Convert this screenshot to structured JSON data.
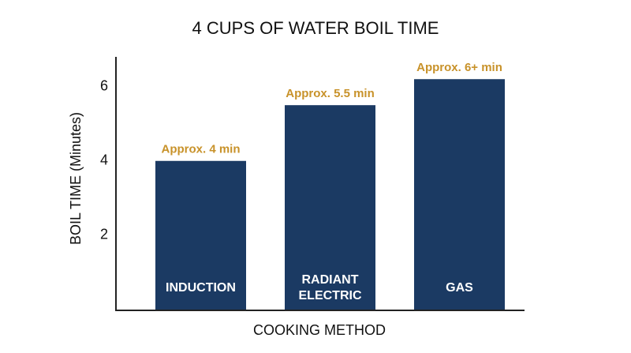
{
  "chart_data": {
    "type": "bar",
    "title": "4 CUPS OF WATER BOIL TIME",
    "x_label": "COOKING METHOD",
    "y_label": "BOIL TIME (Minutes)",
    "categories": [
      "INDUCTION",
      "RADIANT ELECTRIC",
      "GAS"
    ],
    "values": [
      4,
      5.5,
      6.2
    ],
    "value_labels": [
      "Approx. 4 min",
      "Approx. 5.5 min",
      "Approx. 6+ min"
    ],
    "color": "#1b3a63",
    "ylim": [
      0,
      6.8
    ],
    "yticks": [
      2,
      4,
      6
    ]
  }
}
